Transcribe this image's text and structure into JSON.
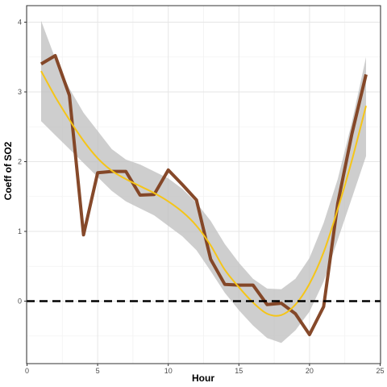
{
  "chart_data": {
    "type": "line",
    "title": "",
    "xlabel": "Hour",
    "ylabel": "Coeff of SO2",
    "xlim": [
      0,
      25
    ],
    "ylim": [
      -0.9,
      4.2
    ],
    "x_ticks": [
      0,
      5,
      10,
      15,
      20,
      25
    ],
    "y_ticks": [
      0,
      1,
      2,
      3,
      4
    ],
    "grid": true,
    "legend": "none",
    "reference_line": {
      "y": 0,
      "style": "dashed",
      "color": "#000000"
    },
    "series": [
      {
        "type": "line",
        "color": "#7f3f1f",
        "x": [
          1,
          2,
          3,
          4,
          5,
          6,
          7,
          8,
          9,
          10,
          11,
          12,
          13,
          14,
          15,
          16,
          17,
          18,
          19,
          20,
          21,
          22,
          23,
          24
        ],
        "values": [
          3.4,
          3.52,
          2.95,
          0.95,
          1.84,
          1.86,
          1.86,
          1.52,
          1.53,
          1.88,
          1.67,
          1.45,
          0.6,
          0.24,
          0.23,
          0.23,
          -0.05,
          -0.03,
          -0.18,
          -0.48,
          -0.08,
          1.4,
          2.4,
          3.25
        ]
      },
      {
        "type": "smooth",
        "color": "#f5c518",
        "x": [
          1,
          2,
          3,
          4,
          5,
          6,
          7,
          8,
          9,
          10,
          11,
          12,
          13,
          14,
          15,
          16,
          17,
          18,
          19,
          20,
          21,
          22,
          23,
          24
        ],
        "values": [
          3.3,
          2.93,
          2.6,
          2.3,
          2.05,
          1.87,
          1.75,
          1.65,
          1.55,
          1.43,
          1.28,
          1.08,
          0.8,
          0.45,
          0.2,
          -0.02,
          -0.18,
          -0.2,
          -0.05,
          0.25,
          0.7,
          1.32,
          2.02,
          2.8
        ],
        "band_lower": [
          2.58,
          2.38,
          2.18,
          1.98,
          1.78,
          1.58,
          1.43,
          1.33,
          1.23,
          1.08,
          0.93,
          0.73,
          0.43,
          0.12,
          -0.13,
          -0.35,
          -0.53,
          -0.6,
          -0.42,
          -0.15,
          0.28,
          0.88,
          1.48,
          2.08
        ],
        "band_upper": [
          4.02,
          3.48,
          3.05,
          2.7,
          2.44,
          2.18,
          2.03,
          1.96,
          1.86,
          1.76,
          1.61,
          1.41,
          1.15,
          0.82,
          0.55,
          0.32,
          0.18,
          0.17,
          0.32,
          0.62,
          1.12,
          1.75,
          2.57,
          3.5
        ]
      }
    ]
  }
}
